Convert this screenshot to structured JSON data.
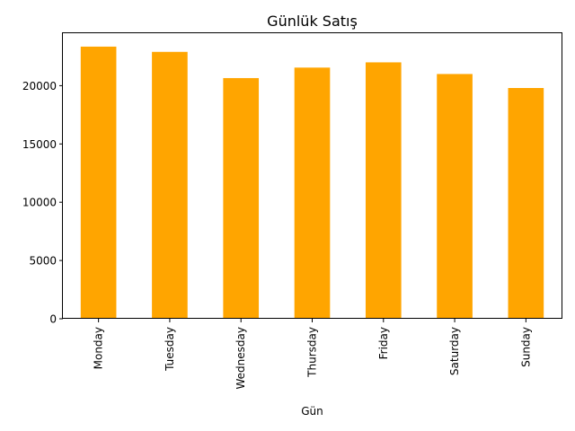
{
  "chart_data": {
    "type": "bar",
    "title": "Günlük Satış",
    "xlabel": "Gün",
    "ylabel": "",
    "categories": [
      "Monday",
      "Tuesday",
      "Wednesday",
      "Thursday",
      "Friday",
      "Saturday",
      "Sunday"
    ],
    "values": [
      23350,
      22900,
      20650,
      21550,
      22000,
      21000,
      19800
    ],
    "ylim": [
      0,
      24500
    ],
    "yticks": [
      0,
      5000,
      10000,
      15000,
      20000
    ],
    "ytick_labels": [
      "0",
      "5000",
      "10000",
      "15000",
      "20000"
    ],
    "bar_color": "#FFA500",
    "grid": false,
    "legend": null
  }
}
